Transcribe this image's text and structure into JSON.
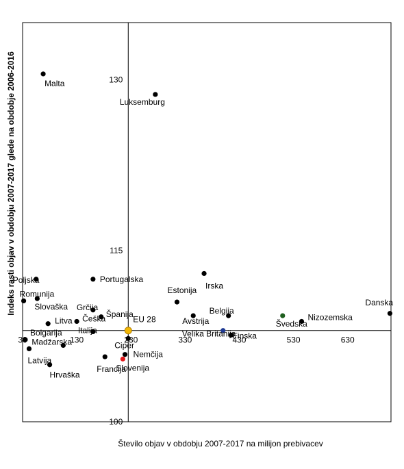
{
  "chart_data": {
    "type": "scatter",
    "title": "",
    "xlabel": "Število objav  v obdobju 2007-2017 na milijon prebivacev",
    "ylabel": "Indeks rasti objav  v obdobju  2007-2017 glede na obdobje 2006-2016",
    "xlim": [
      30,
      710
    ],
    "ylim": [
      100,
      135
    ],
    "x_ticks": [
      30,
      130,
      230,
      330,
      430,
      530,
      630
    ],
    "y_ticks": [
      100,
      115,
      130
    ],
    "crosshair": {
      "x": 225,
      "y": 108
    },
    "grid": false,
    "colors": {
      "default": "#000000",
      "eu": "#f2b705",
      "slovenia": "#e31a1c",
      "uk": "#1f3a93",
      "sweden": "#1f5f1f"
    },
    "points": [
      {
        "name": "Malta",
        "x": 68,
        "y": 130.5,
        "color": "default"
      },
      {
        "name": "Luksemburg",
        "x": 275,
        "y": 128.7,
        "color": "default"
      },
      {
        "name": "Poljska",
        "x": 55,
        "y": 112.5,
        "color": "default"
      },
      {
        "name": "Portugalska",
        "x": 160,
        "y": 112.5,
        "color": "default"
      },
      {
        "name": "Irska",
        "x": 365,
        "y": 113,
        "color": "default"
      },
      {
        "name": "Estonija",
        "x": 315,
        "y": 110.5,
        "color": "default"
      },
      {
        "name": "Romunija",
        "x": 32,
        "y": 110.6,
        "color": "default"
      },
      {
        "name": "Slovaška",
        "x": 57,
        "y": 110.8,
        "color": "default"
      },
      {
        "name": "Grčija",
        "x": 160,
        "y": 109.8,
        "color": "default"
      },
      {
        "name": "Španija",
        "x": 175,
        "y": 109.2,
        "color": "default"
      },
      {
        "name": "Češka",
        "x": 130,
        "y": 108.8,
        "color": "default"
      },
      {
        "name": "Litva",
        "x": 77,
        "y": 108.6,
        "color": "default"
      },
      {
        "name": "Italija",
        "x": 160,
        "y": 107.9,
        "color": "default"
      },
      {
        "name": "Bolgarija",
        "x": 35,
        "y": 107.2,
        "color": "default"
      },
      {
        "name": "Latvija",
        "x": 42,
        "y": 106.4,
        "color": "default"
      },
      {
        "name": "Hrvaška",
        "x": 80,
        "y": 105,
        "color": "default"
      },
      {
        "name": "Madžarska",
        "x": 105,
        "y": 106.7,
        "color": "default"
      },
      {
        "name": "Francija",
        "x": 182,
        "y": 105.7,
        "color": "default"
      },
      {
        "name": "Ciper",
        "x": 225,
        "y": 107.3,
        "color": "default"
      },
      {
        "name": "Nemčija",
        "x": 219,
        "y": 105.9,
        "color": "default"
      },
      {
        "name": "Slovenija",
        "x": 215,
        "y": 105.5,
        "color": "slovenia"
      },
      {
        "name": "EU 28",
        "x": 225,
        "y": 108,
        "color": "eu"
      },
      {
        "name": "Avstrija",
        "x": 345,
        "y": 109.3,
        "color": "default"
      },
      {
        "name": "Belgija",
        "x": 410,
        "y": 109.3,
        "color": "default"
      },
      {
        "name": "Velika Britanija",
        "x": 400,
        "y": 108,
        "color": "uk"
      },
      {
        "name": "Finska",
        "x": 415,
        "y": 107.6,
        "color": "default"
      },
      {
        "name": "Švedska",
        "x": 510,
        "y": 109.3,
        "color": "sweden"
      },
      {
        "name": "Nizozemska",
        "x": 545,
        "y": 108.8,
        "color": "default"
      },
      {
        "name": "Danska",
        "x": 708,
        "y": 109.5,
        "color": "default"
      }
    ]
  }
}
